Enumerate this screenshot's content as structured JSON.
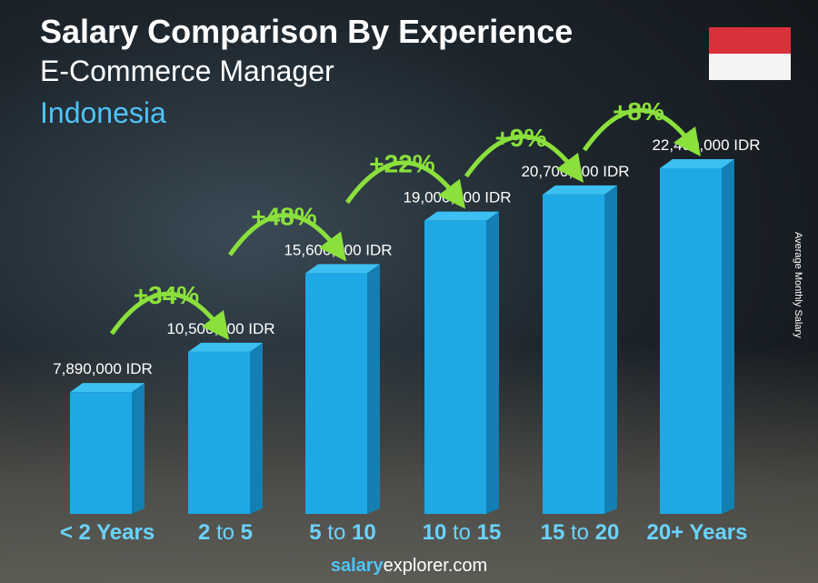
{
  "header": {
    "title": "Salary Comparison By Experience",
    "subtitle": "E-Commerce Manager",
    "country": "Indonesia"
  },
  "flag": {
    "name": "indonesia-flag",
    "colors": [
      "#d9313a",
      "#f4f4f4"
    ]
  },
  "footer": {
    "site_bold": "salary",
    "site_rest": "explorer.com"
  },
  "chart_data": {
    "type": "bar",
    "title": "Salary Comparison By Experience",
    "ylabel": "Average Monthly Salary",
    "categories": [
      "< 2 Years",
      "2 to 5",
      "5 to 10",
      "10 to 15",
      "15 to 20",
      "20+ Years"
    ],
    "values": [
      7890000,
      10500000,
      15600000,
      19000000,
      20700000,
      22400000
    ],
    "value_labels": [
      "7,890,000 IDR",
      "10,500,000 IDR",
      "15,600,000 IDR",
      "19,000,000 IDR",
      "20,700,000 IDR",
      "22,400,000 IDR"
    ],
    "changes": [
      "+34%",
      "+48%",
      "+22%",
      "+9%",
      "+8%"
    ],
    "bar_color": "#1ea9e6",
    "change_color": "#8be03c",
    "label_color": "#6ad3ff"
  }
}
